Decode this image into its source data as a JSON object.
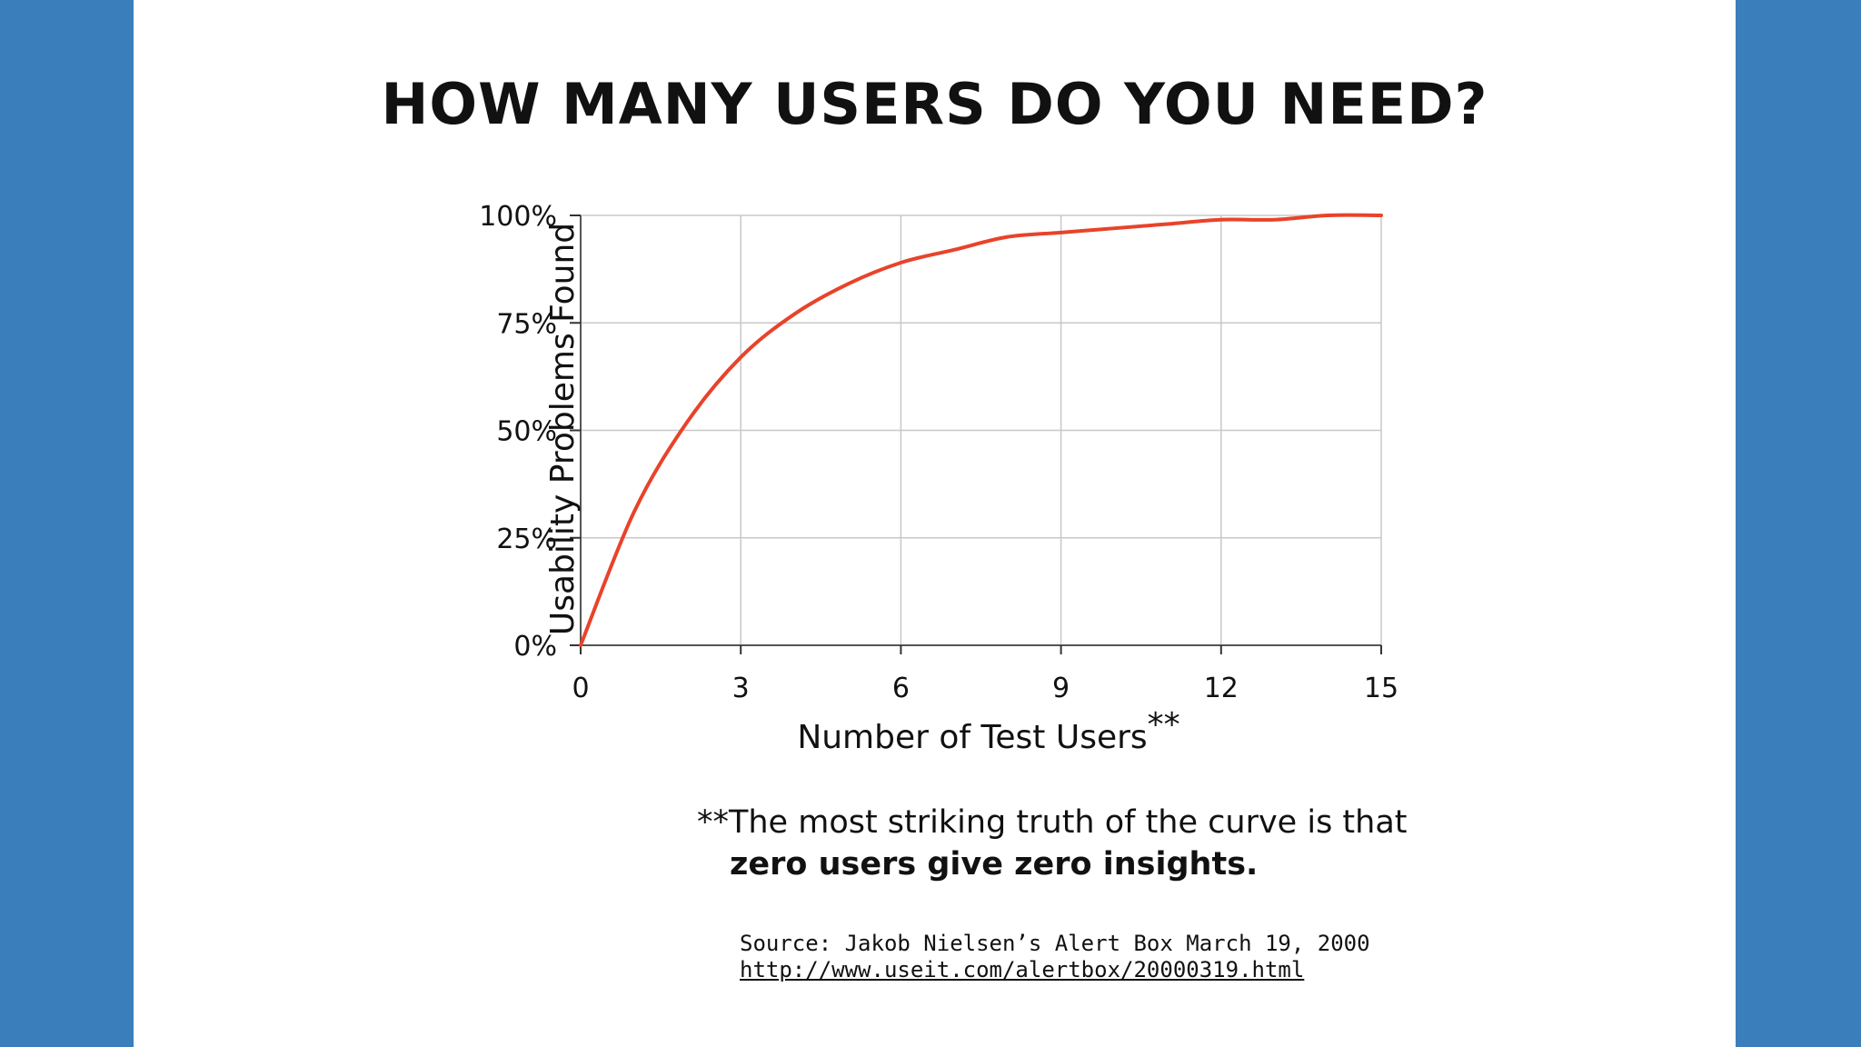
{
  "slide": {
    "title": "HOW MANY USERS DO YOU NEED?",
    "note_line1": "**The most striking truth of the curve is that",
    "note_line2": "zero users give zero insights.",
    "source_line": "Source: Jakob Nielsen’s Alert Box March 19, 2000",
    "source_url": "http://www.useit.com/alertbox/20000319.html"
  },
  "colors": {
    "background": "#3a7fbc",
    "curve": "#e8432a",
    "grid": "#c8c8c8"
  },
  "chart_data": {
    "type": "line",
    "xlabel": "Number of Test Users",
    "xlabel_suffix": "**",
    "ylabel": "Usability Problems Found",
    "xlim": [
      0,
      15
    ],
    "ylim": [
      0,
      100
    ],
    "x_ticks": [
      0,
      3,
      6,
      9,
      12,
      15
    ],
    "y_ticks": [
      0,
      25,
      50,
      75,
      100
    ],
    "x_tick_labels": [
      "0",
      "3",
      "6",
      "9",
      "12",
      "15"
    ],
    "y_tick_labels": [
      "0%",
      "25%",
      "50%",
      "75%",
      "100%"
    ],
    "grid": true,
    "series": [
      {
        "x": [
          0,
          1,
          2,
          3,
          4,
          5,
          6,
          7,
          8,
          9,
          10,
          11,
          12,
          13,
          14,
          15
        ],
        "y": [
          0,
          31,
          52,
          67,
          77,
          84,
          89,
          92,
          95,
          96,
          97,
          98,
          99,
          99,
          100,
          100
        ]
      }
    ]
  }
}
